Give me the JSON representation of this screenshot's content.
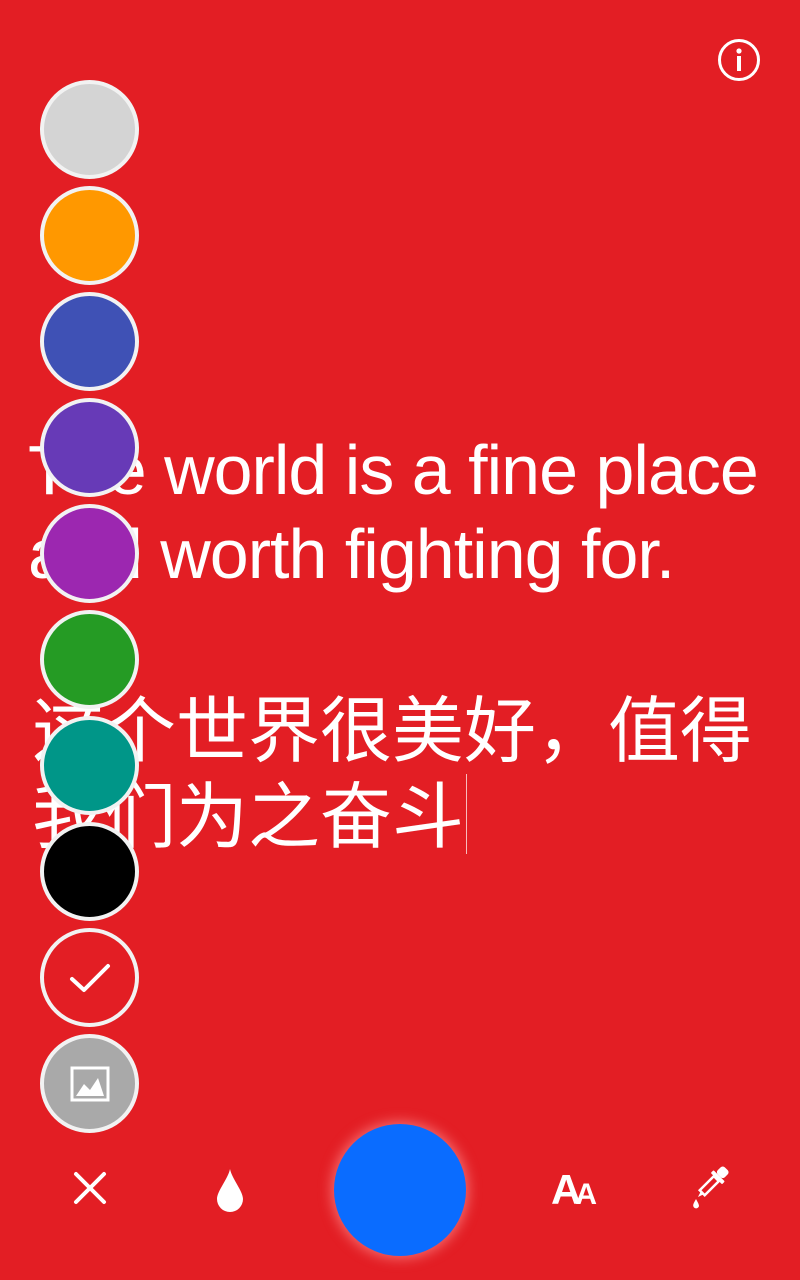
{
  "header": {
    "info_icon": "info-icon"
  },
  "canvas": {
    "english_text": "The world is a fine place\nand worth fighting for.",
    "chinese_text": "这个世界很美好，值得我们为之奋斗"
  },
  "palette": {
    "swatches": [
      {
        "name": "light-gray",
        "color": "#d4d4d4"
      },
      {
        "name": "orange",
        "color": "#ff9800"
      },
      {
        "name": "indigo",
        "color": "#3f51b5"
      },
      {
        "name": "deep-purple",
        "color": "#673ab7"
      },
      {
        "name": "purple",
        "color": "#9c27b0"
      },
      {
        "name": "green",
        "color": "#259b24"
      },
      {
        "name": "teal",
        "color": "#009688"
      },
      {
        "name": "black",
        "color": "#000000"
      },
      {
        "name": "confirm",
        "color": "#e31e24"
      },
      {
        "name": "background-image",
        "color": "#a9a9a9"
      }
    ]
  },
  "toolbar": {
    "close_icon": "close-icon",
    "drop_icon": "drop-icon",
    "current_color": "#0a6cff",
    "font_label_big": "A",
    "font_label_small": "A",
    "eyedropper_icon": "eyedropper-icon"
  },
  "theme": {
    "background": "#e31e24",
    "foreground": "#ffffff"
  }
}
